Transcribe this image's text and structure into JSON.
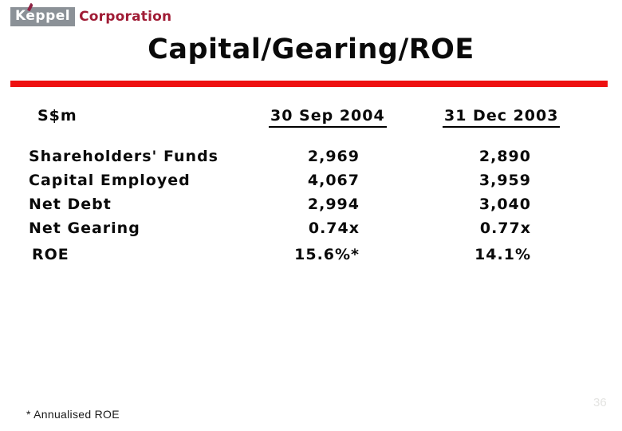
{
  "slide": {
    "logo": {
      "name": "Keppel",
      "suffix": "Corporation"
    },
    "title": "Capital/Gearing/ROE",
    "table": {
      "unit_label": "S$m",
      "columns": [
        "30 Sep 2004",
        "31 Dec 2003"
      ],
      "rows": [
        {
          "label": "Shareholders' Funds",
          "sep2004": "2,969",
          "dec2003": "2,890"
        },
        {
          "label": "Capital Employed",
          "sep2004": "4,067",
          "dec2003": "3,959"
        },
        {
          "label": "Net Debt",
          "sep2004": "2,994",
          "dec2003": "3,040"
        },
        {
          "label": "Net Gearing",
          "sep2004": "0.74x",
          "dec2003": "0.77x"
        }
      ],
      "roe": {
        "label": "ROE",
        "sep2004": "15.6%*",
        "dec2003": "14.1%"
      }
    },
    "footnote": "* Annualised ROE",
    "page_number": "36",
    "colors": {
      "rule_red": "#ee1111",
      "logo_box_gray": "#8b9197",
      "logo_corporation_red": "#a01c35",
      "logo_accent_maroon": "#8e2344",
      "page_number_gray": "#e4e4e2"
    }
  }
}
